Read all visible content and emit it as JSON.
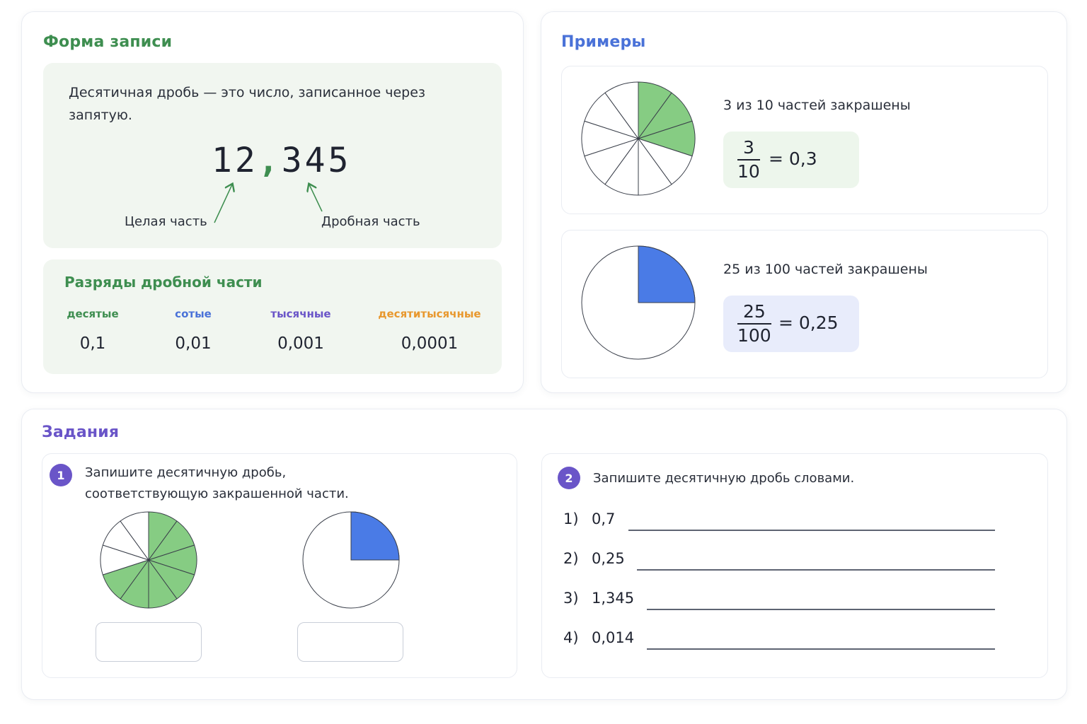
{
  "format": {
    "title": "Форма записи",
    "definition": "Десятичная дробь — это число, записанное через запятую.",
    "number_whole": "12",
    "number_comma": ",",
    "number_fraction": "345",
    "label_whole": "Целая часть",
    "label_fraction": "Дробная часть",
    "ranks_title": "Разряды дробной части",
    "ranks": [
      {
        "name": "десятые",
        "value": "0,1",
        "color": "#3e8e50"
      },
      {
        "name": "сотые",
        "value": "0,01",
        "color": "#4a72d8"
      },
      {
        "name": "тысячные",
        "value": "0,001",
        "color": "#6a55c8"
      },
      {
        "name": "десятитысячные",
        "value": "0,0001",
        "color": "#e8982e"
      }
    ]
  },
  "examples": {
    "title": "Примеры",
    "items": [
      {
        "caption": "3 из 10 частей закрашены",
        "numerator": "3",
        "denominator": "10",
        "result": "= 0,3",
        "parts": 10,
        "shaded": 3,
        "shade_color": "#86cc83",
        "box_color": "#edf6ec"
      },
      {
        "caption": "25 из 100 частей закрашены",
        "numerator": "25",
        "denominator": "100",
        "result": "= 0,25",
        "shaded_fraction": 0.25,
        "shade_color": "#4a7be6",
        "box_color": "#e8ecfb"
      }
    ]
  },
  "tasks": {
    "title": "Задания",
    "task1": {
      "number": "1",
      "text_line1": "Запишите десятичную дробь,",
      "text_line2": "соответствующую закрашенной части.",
      "circle1": {
        "parts": 10,
        "shaded": 7,
        "shade_color": "#86cc83"
      },
      "circle2": {
        "shaded_fraction": 0.25,
        "shade_color": "#4a7be6"
      }
    },
    "task2": {
      "number": "2",
      "text": "Запишите десятичную дробь словами.",
      "items": [
        {
          "num": "1)",
          "value": "0,7"
        },
        {
          "num": "2)",
          "value": "0,25"
        },
        {
          "num": "3)",
          "value": "1,345"
        },
        {
          "num": "4)",
          "value": "0,014"
        }
      ]
    }
  }
}
